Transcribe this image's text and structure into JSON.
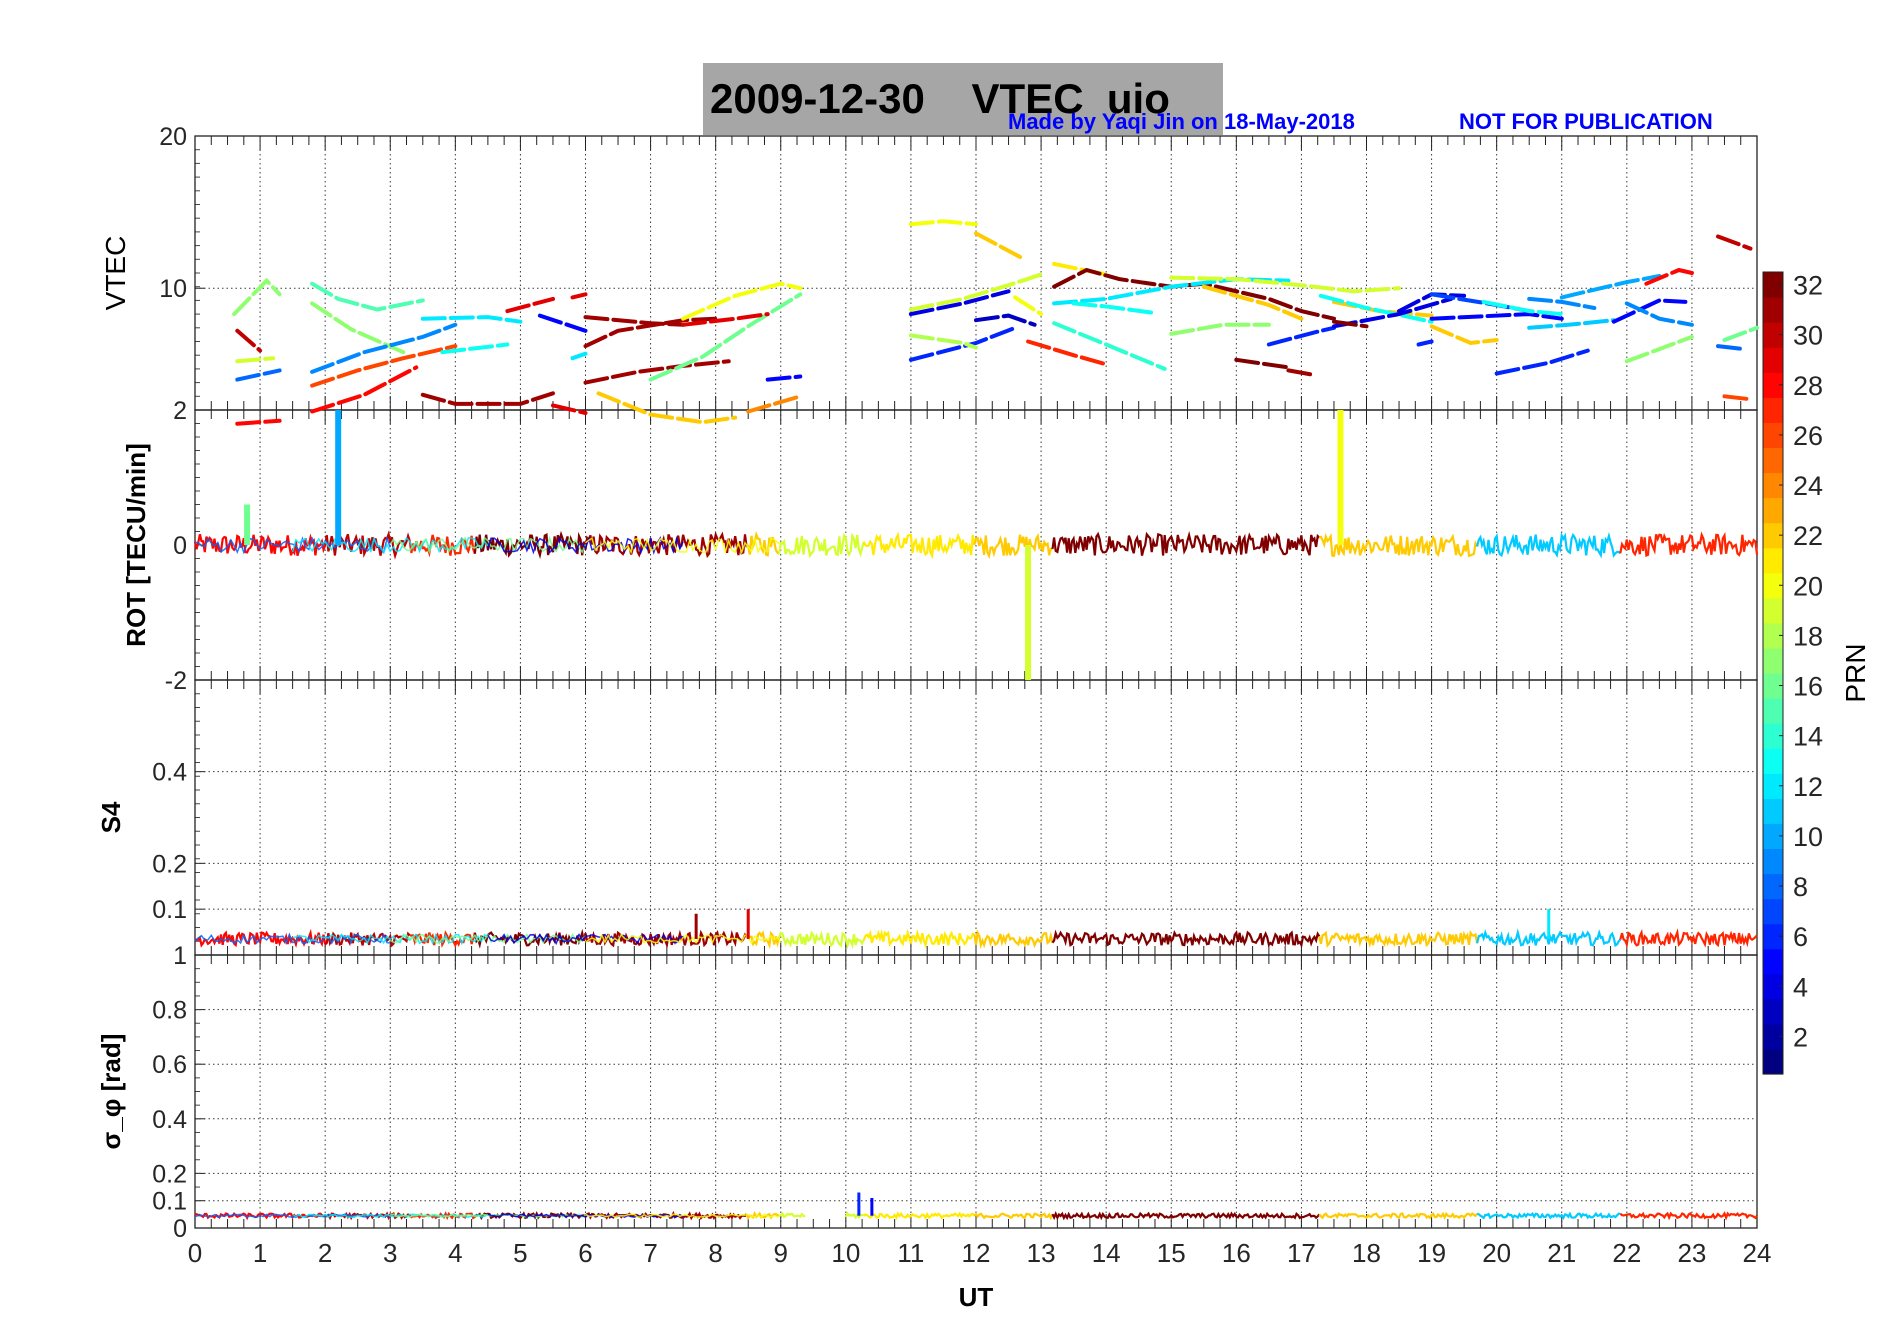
{
  "figure": {
    "date": "2009-12-30",
    "title_suffix": "VTEC  uio",
    "credit": "Made by Yaqi Jin on 18-May-2018",
    "notice": "NOT FOR PUBLICATION"
  },
  "chart_data": {
    "type": "line",
    "x_label": "UT",
    "x_range": [
      0,
      24
    ],
    "x_ticks": [
      "0",
      "1",
      "2",
      "3",
      "4",
      "5",
      "6",
      "7",
      "8",
      "9",
      "10",
      "11",
      "12",
      "13",
      "14",
      "15",
      "16",
      "17",
      "18",
      "19",
      "20",
      "21",
      "22",
      "23",
      "24"
    ],
    "colorbar": {
      "label": "PRN",
      "range": [
        1,
        32
      ],
      "ticks": [
        "2",
        "4",
        "6",
        "8",
        "10",
        "12",
        "14",
        "16",
        "18",
        "20",
        "22",
        "24",
        "26",
        "28",
        "30",
        "32"
      ]
    },
    "panels": [
      {
        "id": "vtec",
        "ylabel": "VTEC",
        "ylim": [
          2,
          20
        ],
        "yticks": [
          "10",
          "20"
        ],
        "series": [
          {
            "prn": 30,
            "x": [
              0.65,
              1.0
            ],
            "y": [
              7.2,
              5.9
            ]
          },
          {
            "prn": 17,
            "x": [
              0.6,
              1.1,
              1.3
            ],
            "y": [
              8.3,
              10.5,
              9.6
            ]
          },
          {
            "prn": 19,
            "x": [
              0.65,
              1.2
            ],
            "y": [
              5.2,
              5.4
            ]
          },
          {
            "prn": 8,
            "x": [
              0.65,
              1.3
            ],
            "y": [
              4.0,
              4.6
            ]
          },
          {
            "prn": 28,
            "x": [
              0.65,
              1.3
            ],
            "y": [
              1.1,
              1.3
            ]
          },
          {
            "prn": 15,
            "x": [
              1.8,
              2.2,
              2.8,
              3.5
            ],
            "y": [
              10.3,
              9.3,
              8.6,
              9.2
            ]
          },
          {
            "prn": 17,
            "x": [
              1.8,
              2.4,
              3.2
            ],
            "y": [
              9.0,
              7.3,
              5.8
            ]
          },
          {
            "prn": 9,
            "x": [
              1.8,
              2.6,
              3.5,
              4.0
            ],
            "y": [
              4.5,
              5.8,
              6.8,
              7.6
            ]
          },
          {
            "prn": 26,
            "x": [
              1.8,
              2.5,
              3.2,
              4.0
            ],
            "y": [
              3.6,
              4.6,
              5.4,
              6.2
            ]
          },
          {
            "prn": 28,
            "x": [
              1.8,
              2.6,
              3.4
            ],
            "y": [
              1.9,
              3.0,
              4.8
            ]
          },
          {
            "prn": 12,
            "x": [
              3.5,
              4.5,
              5.0
            ],
            "y": [
              8.0,
              8.1,
              7.8
            ]
          },
          {
            "prn": 13,
            "x": [
              3.8,
              4.8
            ],
            "y": [
              5.8,
              6.3
            ]
          },
          {
            "prn": 31,
            "x": [
              3.5,
              4.0,
              5.0,
              5.5
            ],
            "y": [
              3.0,
              2.4,
              2.4,
              3.1
            ]
          },
          {
            "prn": 29,
            "x": [
              4.8,
              5.5
            ],
            "y": [
              8.5,
              9.3
            ]
          },
          {
            "prn": 5,
            "x": [
              5.3,
              6.0
            ],
            "y": [
              8.2,
              7.2
            ]
          },
          {
            "prn": 29,
            "x": [
              5.5,
              6.0
            ],
            "y": [
              2.3,
              1.8
            ]
          },
          {
            "prn": 29,
            "x": [
              5.8,
              6.0
            ],
            "y": [
              9.4,
              9.6
            ]
          },
          {
            "prn": 12,
            "x": [
              5.8,
              6.0
            ],
            "y": [
              5.4,
              5.7
            ]
          },
          {
            "prn": 31,
            "x": [
              6.0,
              6.5,
              7.5,
              8.0
            ],
            "y": [
              6.2,
              7.2,
              7.9,
              8.0
            ]
          },
          {
            "prn": 31,
            "x": [
              6.0,
              6.8,
              7.5,
              8.2
            ],
            "y": [
              3.8,
              4.5,
              4.9,
              5.2
            ]
          },
          {
            "prn": 31,
            "x": [
              6.0,
              7.0,
              7.5
            ],
            "y": [
              8.1,
              7.7,
              7.6
            ]
          },
          {
            "prn": 22,
            "x": [
              6.2,
              7.0,
              7.8,
              8.3
            ],
            "y": [
              3.1,
              1.7,
              1.2,
              1.5
            ]
          },
          {
            "prn": 16,
            "x": [
              7.0,
              7.8,
              8.5,
              9.3
            ],
            "y": [
              4.0,
              5.5,
              7.5,
              9.6
            ]
          },
          {
            "prn": 20,
            "x": [
              7.5,
              8.3,
              9.0,
              9.3
            ],
            "y": [
              8.0,
              9.5,
              10.3,
              10.0
            ]
          },
          {
            "prn": 29,
            "x": [
              7.5,
              8.3,
              8.8
            ],
            "y": [
              7.6,
              8.0,
              8.3
            ]
          },
          {
            "prn": 24,
            "x": [
              8.5,
              9.3
            ],
            "y": [
              1.9,
              2.9
            ]
          },
          {
            "prn": 5,
            "x": [
              8.8,
              9.3
            ],
            "y": [
              4.0,
              4.2
            ]
          },
          {
            "prn": 20,
            "x": [
              11.0,
              11.5,
              12.0
            ],
            "y": [
              14.2,
              14.4,
              14.2
            ]
          },
          {
            "prn": 22,
            "x": [
              12.0,
              12.7
            ],
            "y": [
              13.6,
              12.0
            ]
          },
          {
            "prn": 19,
            "x": [
              11.0,
              11.8,
              12.5,
              13.0
            ],
            "y": [
              8.6,
              9.3,
              10.2,
              10.9
            ]
          },
          {
            "prn": 4,
            "x": [
              11.0,
              11.8,
              12.5
            ],
            "y": [
              8.3,
              9.0,
              9.8
            ]
          },
          {
            "prn": 6,
            "x": [
              11.0,
              12.0,
              12.6
            ],
            "y": [
              5.3,
              6.4,
              7.4
            ]
          },
          {
            "prn": 18,
            "x": [
              11.0,
              11.8,
              12.0
            ],
            "y": [
              6.9,
              6.4,
              6.1
            ]
          },
          {
            "prn": 3,
            "x": [
              12.0,
              12.5,
              12.9
            ],
            "y": [
              7.9,
              8.2,
              7.6
            ]
          },
          {
            "prn": 20,
            "x": [
              12.6,
              13.0
            ],
            "y": [
              9.4,
              8.3
            ]
          },
          {
            "prn": 21,
            "x": [
              13.2,
              14.0
            ],
            "y": [
              11.6,
              10.9
            ]
          },
          {
            "prn": 32,
            "x": [
              13.2,
              13.7,
              14.2,
              15.0,
              15.5,
              16.5,
              17.0,
              17.5
            ],
            "y": [
              10.1,
              11.2,
              10.6,
              10.1,
              10.3,
              9.3,
              8.5,
              8.0
            ]
          },
          {
            "prn": 12,
            "x": [
              13.2,
              14.0,
              15.0,
              16.0,
              16.8
            ],
            "y": [
              9.0,
              9.3,
              10.1,
              10.6,
              10.5
            ]
          },
          {
            "prn": 14,
            "x": [
              13.2,
              14.0,
              14.9
            ],
            "y": [
              7.7,
              6.3,
              4.7
            ]
          },
          {
            "prn": 27,
            "x": [
              12.8,
              13.5,
              14.0
            ],
            "y": [
              6.5,
              5.6,
              5.0
            ]
          },
          {
            "prn": 13,
            "x": [
              13.5,
              14.0,
              14.7
            ],
            "y": [
              9.0,
              8.8,
              8.4
            ]
          },
          {
            "prn": 17,
            "x": [
              15.0,
              15.8,
              16.5
            ],
            "y": [
              7.0,
              7.6,
              7.6
            ]
          },
          {
            "prn": 19,
            "x": [
              15.0,
              16.0,
              17.0,
              17.8,
              18.5
            ],
            "y": [
              10.7,
              10.6,
              10.2,
              9.8,
              10.0
            ]
          },
          {
            "prn": 22,
            "x": [
              15.5,
              16.5,
              17.0
            ],
            "y": [
              10.1,
              8.9,
              8.0
            ]
          },
          {
            "prn": 32,
            "x": [
              16.0,
              16.8
            ],
            "y": [
              5.3,
              4.8
            ]
          },
          {
            "prn": 31,
            "x": [
              16.8,
              17.2
            ],
            "y": [
              4.6,
              4.3
            ]
          },
          {
            "prn": 6,
            "x": [
              16.5,
              17.2,
              17.5
            ],
            "y": [
              6.3,
              7.1,
              7.4
            ]
          },
          {
            "prn": 22,
            "x": [
              17.5,
              18.2,
              19.0
            ],
            "y": [
              9.1,
              8.5,
              8.2
            ]
          },
          {
            "prn": 13,
            "x": [
              17.3,
              18.0,
              19.0
            ],
            "y": [
              9.5,
              8.7,
              7.8
            ]
          },
          {
            "prn": 4,
            "x": [
              17.5,
              18.5,
              19.3
            ],
            "y": [
              7.5,
              8.3,
              9.3
            ]
          },
          {
            "prn": 4,
            "x": [
              18.5,
              19.0,
              19.5
            ],
            "y": [
              8.5,
              9.6,
              9.5
            ]
          },
          {
            "prn": 22,
            "x": [
              19.0,
              19.6,
              20.0
            ],
            "y": [
              7.5,
              6.4,
              6.6
            ]
          },
          {
            "prn": 32,
            "x": [
              17.5,
              18.0
            ],
            "y": [
              7.8,
              7.5
            ]
          },
          {
            "prn": 6,
            "x": [
              18.8,
              19.0
            ],
            "y": [
              6.3,
              6.5
            ]
          },
          {
            "prn": 7,
            "x": [
              19.0,
              20.0,
              20.5
            ],
            "y": [
              9.6,
              8.9,
              8.5
            ]
          },
          {
            "prn": 5,
            "x": [
              19.0,
              20.5,
              21.0
            ],
            "y": [
              8.0,
              8.3,
              8.0
            ]
          },
          {
            "prn": 13,
            "x": [
              19.8,
              20.5,
              21.0
            ],
            "y": [
              9.1,
              8.5,
              8.3
            ]
          },
          {
            "prn": 6,
            "x": [
              20.0,
              20.8,
              21.4
            ],
            "y": [
              4.4,
              5.1,
              5.9
            ]
          },
          {
            "prn": 9,
            "x": [
              20.5,
              21.0,
              21.5
            ],
            "y": [
              9.3,
              9.1,
              8.7
            ]
          },
          {
            "prn": 11,
            "x": [
              20.5,
              21.1,
              21.8
            ],
            "y": [
              7.4,
              7.6,
              7.9
            ]
          },
          {
            "prn": 10,
            "x": [
              21.0,
              22.0,
              22.5
            ],
            "y": [
              9.4,
              10.4,
              10.8
            ]
          },
          {
            "prn": 5,
            "x": [
              21.8,
              22.5,
              22.9
            ],
            "y": [
              7.8,
              9.2,
              9.1
            ]
          },
          {
            "prn": 9,
            "x": [
              22.0,
              22.5,
              23.0
            ],
            "y": [
              9.0,
              8.0,
              7.6
            ]
          },
          {
            "prn": 28,
            "x": [
              22.3,
              22.8,
              23.0
            ],
            "y": [
              10.3,
              11.2,
              11.0
            ]
          },
          {
            "prn": 17,
            "x": [
              22.0,
              22.5,
              23.0
            ],
            "y": [
              5.2,
              6.0,
              6.8
            ]
          },
          {
            "prn": 30,
            "x": [
              23.4,
              23.9
            ],
            "y": [
              13.4,
              12.6
            ]
          },
          {
            "prn": 26,
            "x": [
              23.5,
              23.9
            ],
            "y": [
              2.9,
              2.7
            ]
          },
          {
            "prn": 16,
            "x": [
              23.5,
              24.0
            ],
            "y": [
              6.6,
              7.4
            ]
          },
          {
            "prn": 8,
            "x": [
              23.4,
              23.8
            ],
            "y": [
              6.2,
              6.0
            ]
          }
        ]
      },
      {
        "id": "rot",
        "ylabel": "ROT [TECU/min]",
        "ylim": [
          -2,
          2
        ],
        "yticks": [
          "-2",
          "0",
          "2"
        ],
        "spikes": [
          {
            "prn": 10,
            "x": 2.2,
            "y": 2.0
          },
          {
            "prn": 20,
            "x": 17.6,
            "y": 2.0
          },
          {
            "prn": 19,
            "x": 12.8,
            "y": -2.0
          },
          {
            "prn": 16,
            "x": 0.8,
            "y": 0.6
          }
        ]
      },
      {
        "id": "s4",
        "ylabel": "S4",
        "ylim": [
          0,
          0.6
        ],
        "yticks": [
          "0.1",
          "0.2",
          "0.4"
        ],
        "spikes": [
          {
            "prn": 31,
            "x": 7.7,
            "y": 0.09
          },
          {
            "prn": 29,
            "x": 8.5,
            "y": 0.1
          },
          {
            "prn": 12,
            "x": 20.8,
            "y": 0.1
          }
        ]
      },
      {
        "id": "sigma_phi",
        "ylabel": "σ_φ [rad]",
        "ylim": [
          0,
          1
        ],
        "yticks": [
          "0",
          "0.1",
          "0.2",
          "0.4",
          "0.6",
          "0.8",
          "1"
        ],
        "spikes": [
          {
            "prn": 6,
            "x": 10.2,
            "y": 0.13
          },
          {
            "prn": 5,
            "x": 10.4,
            "y": 0.11
          }
        ]
      }
    ],
    "segments": [
      {
        "prn": 28,
        "from": 0.0,
        "to": 2.0
      },
      {
        "prn": 30,
        "from": 2.0,
        "to": 3.3
      },
      {
        "prn": 27,
        "from": 3.3,
        "to": 4.3
      },
      {
        "prn": 32,
        "from": 4.3,
        "to": 6.0
      },
      {
        "prn": 31,
        "from": 6.0,
        "to": 8.5
      },
      {
        "prn": 22,
        "from": 8.5,
        "to": 9.0
      },
      {
        "prn": 19,
        "from": 9.0,
        "to": 10.3
      },
      {
        "prn": 21,
        "from": 10.3,
        "to": 12.0
      },
      {
        "prn": 22,
        "from": 12.0,
        "to": 13.2
      },
      {
        "prn": 32,
        "from": 13.2,
        "to": 17.3
      },
      {
        "prn": 22,
        "from": 17.3,
        "to": 19.7
      },
      {
        "prn": 11,
        "from": 19.7,
        "to": 21.9
      },
      {
        "prn": 27,
        "from": 21.9,
        "to": 24.0
      }
    ]
  }
}
